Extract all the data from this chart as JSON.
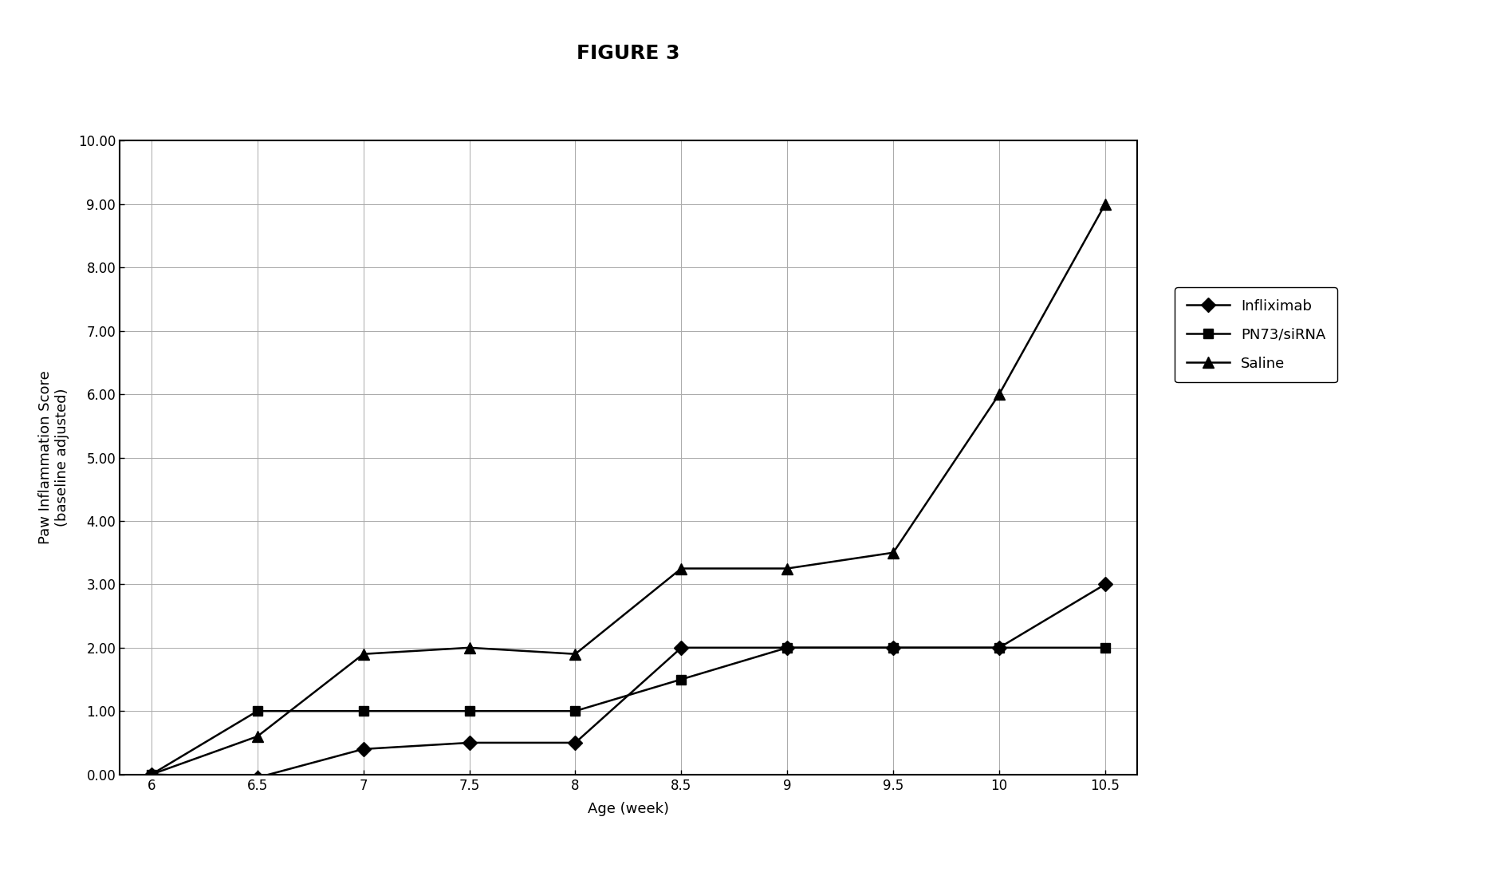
{
  "title": "FIGURE 3",
  "xlabel": "Age (week)",
  "ylabel": "Paw Inflammation Score\n(baseline adjusted)",
  "x_values": [
    6,
    6.5,
    7,
    7.5,
    8,
    8.5,
    9,
    9.5,
    10,
    10.5
  ],
  "infliximab": [
    0.0,
    -0.05,
    0.4,
    0.5,
    0.5,
    2.0,
    2.0,
    2.0,
    2.0,
    3.0
  ],
  "pn73_sirna": [
    0.0,
    1.0,
    1.0,
    1.0,
    1.0,
    1.5,
    2.0,
    2.0,
    2.0,
    2.0
  ],
  "saline": [
    0.0,
    0.6,
    1.9,
    2.0,
    1.9,
    3.25,
    3.25,
    3.5,
    6.0,
    9.0
  ],
  "ylim": [
    0.0,
    10.0
  ],
  "yticks": [
    0.0,
    1.0,
    2.0,
    3.0,
    4.0,
    5.0,
    6.0,
    7.0,
    8.0,
    9.0,
    10.0
  ],
  "ytick_labels": [
    "0.00",
    "1.00",
    "2.00",
    "3.00",
    "4.00",
    "5.00",
    "6.00",
    "7.00",
    "8.00",
    "9.00",
    "10.00"
  ],
  "xticks": [
    6,
    6.5,
    7,
    7.5,
    8,
    8.5,
    9,
    9.5,
    10,
    10.5
  ],
  "xtick_labels": [
    "6",
    "6.5",
    "7",
    "7.5",
    "8",
    "8.5",
    "9",
    "9.5",
    "10",
    "10.5"
  ],
  "line_color": "#000000",
  "bg_color": "#ffffff",
  "plot_bg_color": "#ffffff",
  "legend_labels": [
    "Infliximab",
    "PN73/siRNA",
    "Saline"
  ],
  "title_fontsize": 18,
  "label_fontsize": 13,
  "tick_fontsize": 12,
  "legend_fontsize": 13,
  "linewidth": 1.8,
  "markersize": 9,
  "grid_color": "#aaaaaa",
  "grid_linewidth": 0.7
}
